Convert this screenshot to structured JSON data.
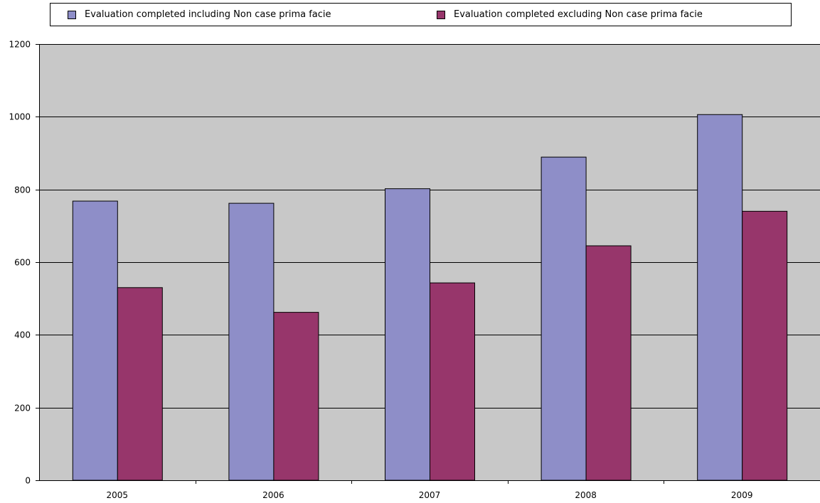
{
  "chart_data": {
    "type": "bar",
    "categories": [
      "2005",
      "2006",
      "2007",
      "2008",
      "2009"
    ],
    "series": [
      {
        "name": "Evaluation completed including Non case prima facie",
        "values": [
          768,
          762,
          802,
          889,
          1006
        ],
        "color": "#8e8ec8"
      },
      {
        "name": "Evaluation completed excluding Non case prima facie",
        "values": [
          530,
          462,
          543,
          645,
          740
        ],
        "color": "#97366b"
      }
    ],
    "title": "",
    "xlabel": "",
    "ylabel": "",
    "ylim": [
      0,
      1200
    ],
    "yticks": [
      0,
      200,
      400,
      600,
      800,
      1000,
      1200
    ],
    "grid": true,
    "legend_position": "top",
    "plot_background": "#c8c8c8"
  }
}
